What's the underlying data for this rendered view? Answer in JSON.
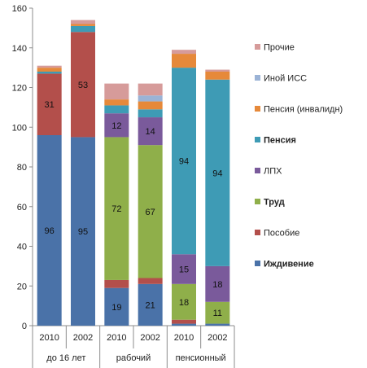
{
  "chart_data": {
    "type": "bar",
    "stacked": true,
    "ylim": [
      0,
      160
    ],
    "yticks": [
      0,
      20,
      40,
      60,
      80,
      100,
      120,
      140,
      160
    ],
    "grid": false,
    "legend_position": "right",
    "categories": [
      "2010",
      "2002",
      "2010",
      "2002",
      "2010",
      "2002"
    ],
    "groups": [
      {
        "label": "до 16 лет",
        "span": 2
      },
      {
        "label": "рабочий",
        "span": 2
      },
      {
        "label": "пенсионный",
        "span": 2
      }
    ],
    "series": [
      {
        "name": "Иждивение",
        "bold": true,
        "color": "#4A72A8",
        "values": [
          96,
          95,
          19,
          21,
          1,
          1
        ],
        "labels": [
          "96",
          "95",
          "19",
          "21",
          "",
          ""
        ]
      },
      {
        "name": "Пособие",
        "bold": false,
        "color": "#B34F4B",
        "values": [
          31,
          53,
          4,
          3,
          2,
          0
        ],
        "labels": [
          "31",
          "53",
          "",
          "",
          "",
          ""
        ]
      },
      {
        "name": "Труд",
        "bold": true,
        "color": "#8FAF4A",
        "values": [
          0,
          0,
          72,
          67,
          18,
          11
        ],
        "labels": [
          "",
          "",
          "72",
          "67",
          "18",
          "11"
        ]
      },
      {
        "name": "ЛПХ",
        "bold": false,
        "color": "#7A5A9B",
        "values": [
          0,
          0,
          12,
          14,
          15,
          18
        ],
        "labels": [
          "",
          "",
          "12",
          "14",
          "15",
          "18"
        ]
      },
      {
        "name": "Пенсия",
        "bold": true,
        "color": "#3E9BB5",
        "values": [
          1,
          3,
          4,
          4,
          94,
          94
        ],
        "labels": [
          "",
          "",
          "",
          "",
          "94",
          "94"
        ]
      },
      {
        "name": "Пенсия (инвалидн)",
        "bold": false,
        "color": "#E6893A",
        "values": [
          2,
          1,
          3,
          4,
          7,
          4
        ],
        "labels": [
          "",
          "",
          "",
          "",
          "",
          ""
        ]
      },
      {
        "name": "Иной ИСС",
        "bold": false,
        "color": "#9BB3D6",
        "values": [
          0,
          0,
          0,
          3,
          0,
          0
        ],
        "labels": [
          "",
          "",
          "",
          "",
          "",
          ""
        ]
      },
      {
        "name": "Прочие",
        "bold": false,
        "color": "#D69B9A",
        "values": [
          1,
          2,
          8,
          6,
          2,
          1
        ],
        "labels": [
          "",
          "",
          "",
          "",
          "",
          ""
        ]
      }
    ]
  }
}
